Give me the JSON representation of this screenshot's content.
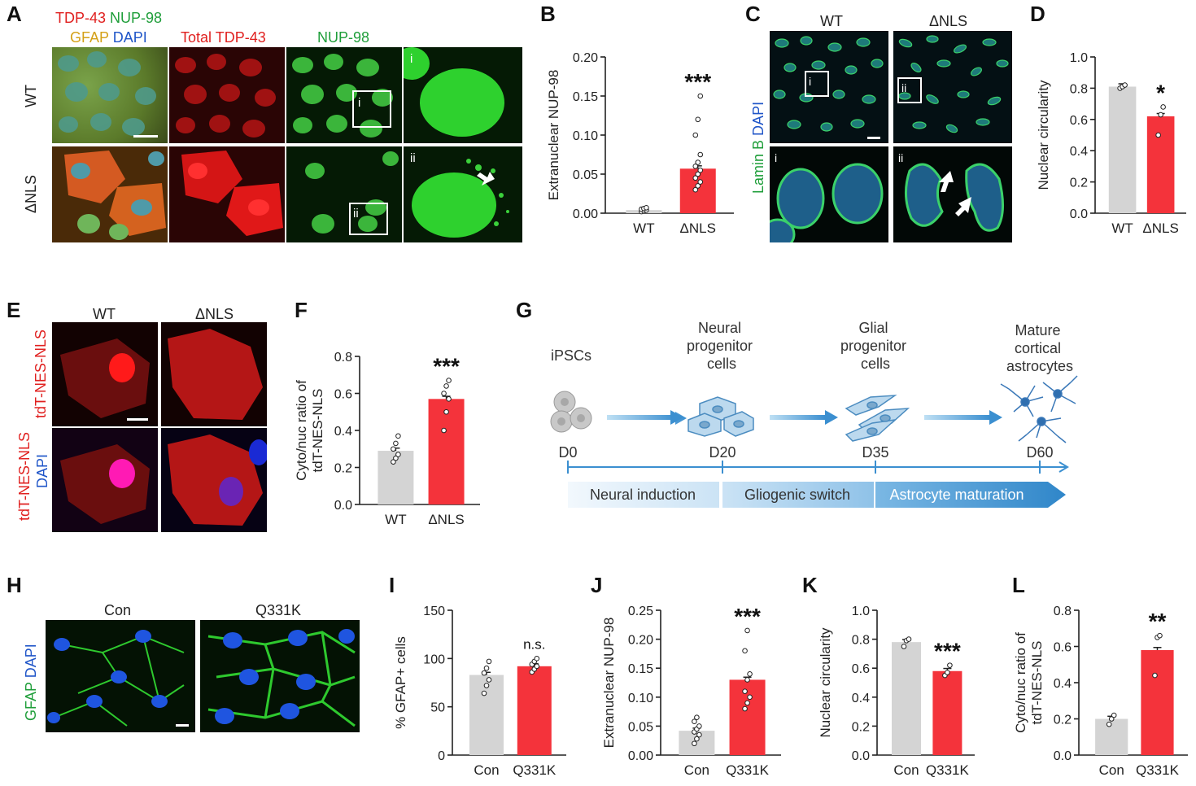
{
  "panel_labels": [
    "A",
    "B",
    "C",
    "D",
    "E",
    "F",
    "G",
    "H",
    "I",
    "J",
    "K",
    "L"
  ],
  "panelA": {
    "merge_label_line1": [
      "TDP-43",
      "NUP-98"
    ],
    "merge_label_line2": [
      "GFAP",
      "DAPI"
    ],
    "col_total": "Total TDP-43",
    "col_nup": "NUP-98",
    "row_wt": "WT",
    "row_dnls": "ΔNLS",
    "inset_i": "i",
    "inset_ii": "ii"
  },
  "panelC": {
    "col_wt": "WT",
    "col_dnls": "ΔNLS",
    "ylabel_a": "Lamin B",
    "ylabel_b": "DAPI",
    "inset_i": "i",
    "inset_ii": "ii"
  },
  "panelE": {
    "col_wt": "WT",
    "col_dnls": "ΔNLS",
    "row1": "tdT-NES-NLS",
    "row2_a": "tdT-NES-NLS",
    "row2_b": "DAPI"
  },
  "panelG": {
    "stages": [
      "iPSCs",
      "Neural progenitor cells",
      "Glial progenitor cells",
      "Mature cortical astrocytes"
    ],
    "stage_lines": [
      [
        "iPSCs"
      ],
      [
        "Neural",
        "progenitor",
        "cells"
      ],
      [
        "Glial",
        "progenitor",
        "cells"
      ],
      [
        "Mature",
        "cortical",
        "astrocytes"
      ]
    ],
    "days": [
      "D0",
      "D20",
      "D35",
      "D60"
    ],
    "phases": [
      "Neural induction",
      "Gliogenic switch",
      "Astrocyte maturation"
    ]
  },
  "panelH": {
    "col_con": "Con",
    "col_q": "Q331K",
    "ylabel_a": "GFAP",
    "ylabel_b": "DAPI"
  },
  "colors": {
    "wt_bar": "#d4d4d4",
    "mut_bar": "#f4333b",
    "arrow_blue": "#3b8fd0",
    "red_text": "#e0201f",
    "green_text": "#1f9e3a",
    "gold_text": "#d4a017",
    "blue_text": "#1f55c8"
  },
  "chart_data": [
    {
      "id": "B",
      "type": "bar",
      "categories": [
        "WT",
        "ΔNLS"
      ],
      "values": [
        0.004,
        0.057
      ],
      "ylabel": "Extranuclear NUP-98",
      "ylim": [
        0,
        0.2
      ],
      "yticks": [
        "0.00",
        "0.05",
        "0.10",
        "0.15",
        "0.20"
      ],
      "annotation": "***",
      "points": [
        [
          0.002,
          0.003,
          0.004,
          0.005,
          0.006,
          0.007
        ],
        [
          0.03,
          0.035,
          0.04,
          0.045,
          0.05,
          0.055,
          0.06,
          0.065,
          0.075,
          0.1,
          0.12,
          0.15
        ]
      ]
    },
    {
      "id": "D",
      "type": "bar",
      "categories": [
        "WT",
        "ΔNLS"
      ],
      "values": [
        0.81,
        0.62
      ],
      "ylabel": "Nuclear circularity",
      "ylim": [
        0,
        1.0
      ],
      "yticks": [
        "0.0",
        "0.2",
        "0.4",
        "0.6",
        "0.8",
        "1.0"
      ],
      "annotation": "*",
      "points": [
        [
          0.8,
          0.81,
          0.82
        ],
        [
          0.5,
          0.63,
          0.68
        ]
      ]
    },
    {
      "id": "F",
      "type": "bar",
      "categories": [
        "WT",
        "ΔNLS"
      ],
      "values": [
        0.29,
        0.57
      ],
      "ylabel": "Cyto/nuc ratio of tdT-NES-NLS",
      "ylabel_lines": [
        "Cyto/nuc ratio of",
        "tdT-NES-NLS"
      ],
      "ylim": [
        0,
        0.8
      ],
      "yticks": [
        "0.0",
        "0.2",
        "0.4",
        "0.6",
        "0.8"
      ],
      "annotation": "***",
      "points": [
        [
          0.23,
          0.25,
          0.27,
          0.3,
          0.33,
          0.37
        ],
        [
          0.4,
          0.5,
          0.57,
          0.6,
          0.64,
          0.67
        ]
      ]
    },
    {
      "id": "I",
      "type": "bar",
      "categories": [
        "Con",
        "Q331K"
      ],
      "values": [
        83,
        92
      ],
      "ylabel": "% GFAP+ cells",
      "ylim": [
        0,
        150
      ],
      "yticks": [
        "0",
        "50",
        "100",
        "150"
      ],
      "annotation": "n.s.",
      "points": [
        [
          64,
          72,
          78,
          85,
          90,
          97
        ],
        [
          86,
          89,
          92,
          94,
          97,
          100
        ]
      ]
    },
    {
      "id": "J",
      "type": "bar",
      "categories": [
        "Con",
        "Q331K"
      ],
      "values": [
        0.042,
        0.13
      ],
      "ylabel": "Extranuclear NUP-98",
      "ylim": [
        0,
        0.25
      ],
      "yticks": [
        "0.00",
        "0.05",
        "0.10",
        "0.15",
        "0.20",
        "0.25"
      ],
      "annotation": "***",
      "points": [
        [
          0.02,
          0.028,
          0.035,
          0.04,
          0.045,
          0.05,
          0.058,
          0.065
        ],
        [
          0.08,
          0.09,
          0.1,
          0.11,
          0.13,
          0.14,
          0.18,
          0.215
        ]
      ]
    },
    {
      "id": "K",
      "type": "bar",
      "categories": [
        "Con",
        "Q331K"
      ],
      "values": [
        0.78,
        0.58
      ],
      "ylabel": "Nuclear circularity",
      "ylim": [
        0,
        1.0
      ],
      "yticks": [
        "0.0",
        "0.2",
        "0.4",
        "0.6",
        "0.8",
        "1.0"
      ],
      "annotation": "***",
      "points": [
        [
          0.75,
          0.79,
          0.8
        ],
        [
          0.55,
          0.57,
          0.62
        ]
      ]
    },
    {
      "id": "L",
      "type": "bar",
      "categories": [
        "Con",
        "Q331K"
      ],
      "values": [
        0.2,
        0.58
      ],
      "ylabel": "Cyto/nuc ratio of tdT-NES-NLS",
      "ylabel_lines": [
        "Cyto/nuc ratio of",
        "tdT-NES-NLS"
      ],
      "ylim": [
        0,
        0.8
      ],
      "yticks": [
        "0.0",
        "0.2",
        "0.4",
        "0.6",
        "0.8"
      ],
      "annotation": "**",
      "points": [
        [
          0.17,
          0.2,
          0.22
        ],
        [
          0.44,
          0.65,
          0.66
        ]
      ]
    }
  ]
}
